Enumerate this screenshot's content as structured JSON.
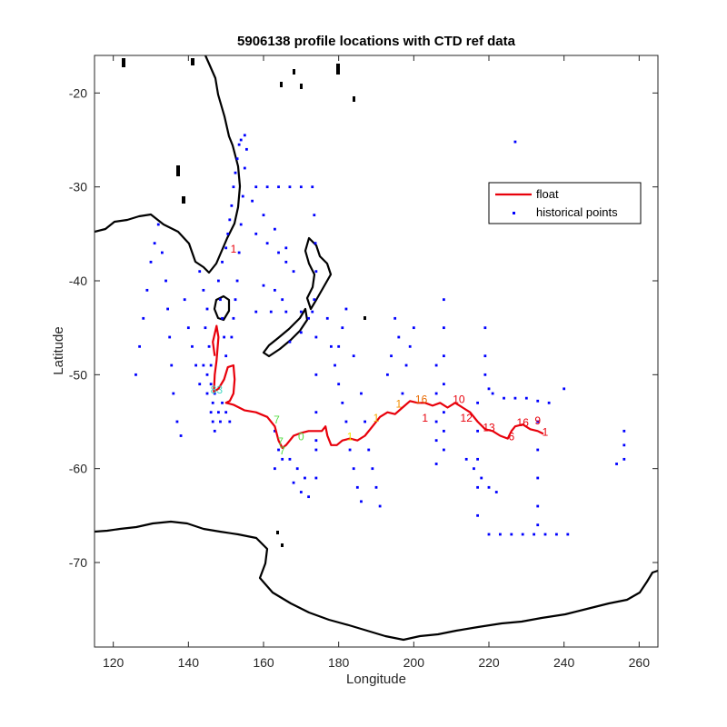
{
  "chart_data": {
    "type": "scatter",
    "title": "5906138 profile locations with CTD ref data",
    "xlabel": "Longitude",
    "ylabel": "Latitude",
    "xlim": [
      115,
      265
    ],
    "ylim": [
      -79,
      -16
    ],
    "xticks": [
      120,
      140,
      160,
      180,
      200,
      220,
      240,
      260
    ],
    "yticks": [
      -20,
      -30,
      -40,
      -50,
      -60,
      -70
    ],
    "grid": false,
    "legend_position": "top-right",
    "colors": {
      "float": "#e8000b",
      "historical": "#0000ff",
      "coast": "#000000"
    },
    "series": [
      {
        "name": "float",
        "style": "line",
        "points": [
          [
            147.0,
            -48.0
          ],
          [
            146.5,
            -46.5
          ],
          [
            147.5,
            -44.8
          ],
          [
            148.0,
            -46.0
          ],
          [
            147.5,
            -48.5
          ],
          [
            147.0,
            -50.0
          ],
          [
            146.8,
            -51.8
          ],
          [
            148.0,
            -51.5
          ],
          [
            149.5,
            -50.5
          ],
          [
            150.5,
            -49.2
          ],
          [
            152.0,
            -49.0
          ],
          [
            152.3,
            -50.5
          ],
          [
            152.0,
            -52.0
          ],
          [
            151.0,
            -52.8
          ],
          [
            150.0,
            -53.0
          ],
          [
            152.0,
            -53.2
          ],
          [
            155.0,
            -53.8
          ],
          [
            158.0,
            -54.0
          ],
          [
            161.0,
            -54.5
          ],
          [
            163.0,
            -55.5
          ],
          [
            164.0,
            -57.0
          ],
          [
            165.0,
            -57.8
          ],
          [
            166.0,
            -57.5
          ],
          [
            168.0,
            -56.5
          ],
          [
            170.0,
            -56.2
          ],
          [
            172.0,
            -56.0
          ],
          [
            174.0,
            -56.0
          ],
          [
            175.5,
            -56.0
          ],
          [
            176.5,
            -55.5
          ],
          [
            177.0,
            -56.5
          ],
          [
            178.0,
            -57.5
          ],
          [
            179.5,
            -57.5
          ],
          [
            181.0,
            -57.0
          ],
          [
            183.0,
            -56.8
          ],
          [
            185.0,
            -57.0
          ],
          [
            187.0,
            -56.5
          ],
          [
            189.0,
            -55.5
          ],
          [
            191.0,
            -54.5
          ],
          [
            193.0,
            -54.0
          ],
          [
            195.0,
            -54.2
          ],
          [
            197.0,
            -53.5
          ],
          [
            199.0,
            -52.8
          ],
          [
            201.0,
            -53.0
          ],
          [
            203.0,
            -53.0
          ],
          [
            205.0,
            -53.3
          ],
          [
            207.0,
            -53.0
          ],
          [
            209.0,
            -53.5
          ],
          [
            211.0,
            -53.0
          ],
          [
            213.0,
            -53.5
          ],
          [
            215.0,
            -54.0
          ],
          [
            217.0,
            -55.0
          ],
          [
            219.0,
            -55.8
          ],
          [
            221.0,
            -56.0
          ],
          [
            223.0,
            -56.5
          ],
          [
            225.0,
            -56.8
          ],
          [
            226.0,
            -56.0
          ],
          [
            227.0,
            -55.5
          ],
          [
            229.0,
            -55.3
          ],
          [
            231.0,
            -55.8
          ],
          [
            233.0,
            -56.0
          ],
          [
            234.5,
            -56.3
          ]
        ]
      },
      {
        "name": "historical points",
        "style": "markers",
        "points": [
          [
            126.0,
            -50.0
          ],
          [
            127.0,
            -47.0
          ],
          [
            128.0,
            -44.0
          ],
          [
            129.0,
            -41.0
          ],
          [
            130.0,
            -38.0
          ],
          [
            131.0,
            -36.0
          ],
          [
            132.0,
            -34.0
          ],
          [
            133.0,
            -37.0
          ],
          [
            134.0,
            -40.0
          ],
          [
            134.5,
            -43.0
          ],
          [
            135.0,
            -46.0
          ],
          [
            135.5,
            -49.0
          ],
          [
            136.0,
            -52.0
          ],
          [
            137.0,
            -55.0
          ],
          [
            138.0,
            -56.5
          ],
          [
            139.0,
            -42.0
          ],
          [
            140.0,
            -45.0
          ],
          [
            141.0,
            -47.0
          ],
          [
            142.0,
            -49.0
          ],
          [
            143.0,
            -51.0
          ],
          [
            143.0,
            -39.0
          ],
          [
            144.0,
            -41.0
          ],
          [
            145.0,
            -43.0
          ],
          [
            144.5,
            -45.0
          ],
          [
            145.5,
            -47.0
          ],
          [
            146.0,
            -49.0
          ],
          [
            145.0,
            -52.0
          ],
          [
            146.0,
            -54.0
          ],
          [
            146.5,
            -55.0
          ],
          [
            147.0,
            -56.0
          ],
          [
            144.0,
            -49.0
          ],
          [
            145.0,
            -50.0
          ],
          [
            146.0,
            -51.0
          ],
          [
            146.5,
            -53.0
          ],
          [
            147.0,
            -52.0
          ],
          [
            148.0,
            -54.0
          ],
          [
            148.5,
            -55.0
          ],
          [
            149.0,
            -53.0
          ],
          [
            150.0,
            -54.0
          ],
          [
            151.0,
            -55.0
          ],
          [
            149.0,
            -38.0
          ],
          [
            150.0,
            -36.5
          ],
          [
            150.5,
            -35.0
          ],
          [
            151.0,
            -33.5
          ],
          [
            151.5,
            -32.0
          ],
          [
            152.0,
            -30.0
          ],
          [
            152.5,
            -28.5
          ],
          [
            153.0,
            -27.0
          ],
          [
            153.5,
            -25.5
          ],
          [
            154.0,
            -25.0
          ],
          [
            155.0,
            -24.5
          ],
          [
            155.5,
            -26.0
          ],
          [
            155.0,
            -28.0
          ],
          [
            154.5,
            -31.0
          ],
          [
            154.0,
            -34.0
          ],
          [
            153.5,
            -37.0
          ],
          [
            153.0,
            -40.0
          ],
          [
            152.5,
            -42.0
          ],
          [
            152.0,
            -44.0
          ],
          [
            151.5,
            -46.0
          ],
          [
            148.0,
            -40.0
          ],
          [
            148.5,
            -42.0
          ],
          [
            149.0,
            -44.0
          ],
          [
            149.5,
            -46.0
          ],
          [
            150.0,
            -48.0
          ],
          [
            158.0,
            -30.0
          ],
          [
            161.0,
            -30.0
          ],
          [
            164.0,
            -30.0
          ],
          [
            167.0,
            -30.0
          ],
          [
            170.0,
            -30.0
          ],
          [
            173.0,
            -30.0
          ],
          [
            157.0,
            -31.5
          ],
          [
            160.0,
            -33.0
          ],
          [
            163.0,
            -34.5
          ],
          [
            166.0,
            -36.5
          ],
          [
            158.0,
            -35.0
          ],
          [
            161.0,
            -36.0
          ],
          [
            164.0,
            -37.0
          ],
          [
            166.0,
            -38.0
          ],
          [
            168.0,
            -39.0
          ],
          [
            158.0,
            -43.3
          ],
          [
            162.0,
            -43.3
          ],
          [
            166.0,
            -43.3
          ],
          [
            170.0,
            -43.3
          ],
          [
            173.0,
            -43.3
          ],
          [
            160.0,
            -40.5
          ],
          [
            163.0,
            -41.0
          ],
          [
            165.0,
            -42.0
          ],
          [
            167.0,
            -46.5
          ],
          [
            170.0,
            -45.5
          ],
          [
            172.0,
            -44.0
          ],
          [
            173.5,
            -33.0
          ],
          [
            173.8,
            -36.0
          ],
          [
            174.0,
            -39.0
          ],
          [
            173.5,
            -42.0
          ],
          [
            174.0,
            -46.0
          ],
          [
            174.0,
            -50.0
          ],
          [
            174.0,
            -54.0
          ],
          [
            174.0,
            -58.0
          ],
          [
            174.0,
            -61.0
          ],
          [
            177.0,
            -44.0
          ],
          [
            178.0,
            -47.0
          ],
          [
            179.0,
            -49.0
          ],
          [
            180.0,
            -51.0
          ],
          [
            181.0,
            -53.0
          ],
          [
            182.0,
            -55.0
          ],
          [
            183.0,
            -58.0
          ],
          [
            184.0,
            -60.0
          ],
          [
            185.0,
            -62.0
          ],
          [
            186.0,
            -63.5
          ],
          [
            180.0,
            -47.0
          ],
          [
            181.0,
            -45.0
          ],
          [
            182.0,
            -43.0
          ],
          [
            184.0,
            -48.0
          ],
          [
            186.0,
            -52.0
          ],
          [
            187.0,
            -55.0
          ],
          [
            188.0,
            -58.0
          ],
          [
            189.0,
            -60.0
          ],
          [
            190.0,
            -62.0
          ],
          [
            191.0,
            -64.0
          ],
          [
            163.0,
            -56.0
          ],
          [
            164.0,
            -58.0
          ],
          [
            165.0,
            -59.0
          ],
          [
            163.0,
            -60.0
          ],
          [
            167.0,
            -59.0
          ],
          [
            169.0,
            -60.0
          ],
          [
            171.0,
            -61.0
          ],
          [
            172.0,
            -63.0
          ],
          [
            168.0,
            -61.5
          ],
          [
            170.0,
            -62.5
          ],
          [
            197.0,
            -52.0
          ],
          [
            198.0,
            -49.0
          ],
          [
            199.0,
            -47.0
          ],
          [
            200.0,
            -45.0
          ],
          [
            196.0,
            -46.0
          ],
          [
            195.0,
            -44.0
          ],
          [
            194.0,
            -48.0
          ],
          [
            193.0,
            -50.0
          ],
          [
            208.0,
            -42.0
          ],
          [
            208.0,
            -45.0
          ],
          [
            208.0,
            -48.0
          ],
          [
            208.0,
            -51.0
          ],
          [
            208.0,
            -54.0
          ],
          [
            208.0,
            -56.0
          ],
          [
            208.0,
            -58.0
          ],
          [
            206.0,
            -49.0
          ],
          [
            206.0,
            -52.0
          ],
          [
            206.0,
            -55.0
          ],
          [
            206.0,
            -57.0
          ],
          [
            206.0,
            -59.5
          ],
          [
            217.0,
            -53.0
          ],
          [
            217.0,
            -56.0
          ],
          [
            217.0,
            -59.0
          ],
          [
            217.0,
            -62.0
          ],
          [
            217.0,
            -65.0
          ],
          [
            219.0,
            -45.0
          ],
          [
            219.0,
            -48.0
          ],
          [
            219.0,
            -50.0
          ],
          [
            220.0,
            -51.5
          ],
          [
            221.0,
            -52.0
          ],
          [
            214.0,
            -59.0
          ],
          [
            216.0,
            -60.0
          ],
          [
            218.0,
            -61.0
          ],
          [
            220.0,
            -62.0
          ],
          [
            222.0,
            -62.5
          ],
          [
            224.0,
            -52.5
          ],
          [
            227.0,
            -52.5
          ],
          [
            230.0,
            -52.5
          ],
          [
            233.0,
            -52.8
          ],
          [
            236.0,
            -53.0
          ],
          [
            233.0,
            -55.0
          ],
          [
            233.0,
            -58.0
          ],
          [
            233.0,
            -61.0
          ],
          [
            233.0,
            -64.0
          ],
          [
            233.0,
            -66.0
          ],
          [
            240.0,
            -51.5
          ],
          [
            256.0,
            -56.0
          ],
          [
            256.0,
            -57.5
          ],
          [
            256.0,
            -59.0
          ],
          [
            254.0,
            -59.5
          ],
          [
            220.0,
            -67.0
          ],
          [
            223.0,
            -67.0
          ],
          [
            226.0,
            -67.0
          ],
          [
            229.0,
            -67.0
          ],
          [
            232.0,
            -67.0
          ],
          [
            235.0,
            -67.0
          ],
          [
            238.0,
            -67.0
          ],
          [
            241.0,
            -67.0
          ],
          [
            227.0,
            -25.2
          ],
          [
            174.0,
            -57.0
          ]
        ]
      }
    ],
    "profile_labels": [
      {
        "text": "1",
        "x": 152.0,
        "y": -37.0,
        "color": "#e8000b"
      },
      {
        "text": "83",
        "x": 147.5,
        "y": -52.0,
        "color": "#44d9c4"
      },
      {
        "text": "7",
        "x": 163.5,
        "y": -55.2,
        "color": "#55dd44"
      },
      {
        "text": "7",
        "x": 164.5,
        "y": -57.5,
        "color": "#55dd44"
      },
      {
        "text": "0",
        "x": 170.0,
        "y": -57.0,
        "color": "#55dd44"
      },
      {
        "text": "7",
        "x": 165.0,
        "y": -58.5,
        "color": "#55dd44"
      },
      {
        "text": "1",
        "x": 183.0,
        "y": -57.0,
        "color": "#f0e200"
      },
      {
        "text": "1",
        "x": 190.0,
        "y": -55.0,
        "color": "#f0a800"
      },
      {
        "text": "1",
        "x": 196.0,
        "y": -53.5,
        "color": "#f39000"
      },
      {
        "text": "16",
        "x": 202.0,
        "y": -53.0,
        "color": "#e86a00"
      },
      {
        "text": "10",
        "x": 212.0,
        "y": -53.0,
        "color": "#e8000b"
      },
      {
        "text": "1",
        "x": 203.0,
        "y": -55.0,
        "color": "#e8000b"
      },
      {
        "text": "12",
        "x": 214.0,
        "y": -55.0,
        "color": "#e8000b"
      },
      {
        "text": "13",
        "x": 220.0,
        "y": -56.0,
        "color": "#e8000b"
      },
      {
        "text": "16",
        "x": 229.0,
        "y": -55.5,
        "color": "#e8000b"
      },
      {
        "text": "9",
        "x": 233.0,
        "y": -55.3,
        "color": "#e8000b"
      },
      {
        "text": "1",
        "x": 235.0,
        "y": -56.5,
        "color": "#e8000b"
      },
      {
        "text": "6",
        "x": 226.0,
        "y": -57.0,
        "color": "#e8000b"
      }
    ]
  },
  "legend": {
    "float": "float",
    "historical": "historical points"
  }
}
